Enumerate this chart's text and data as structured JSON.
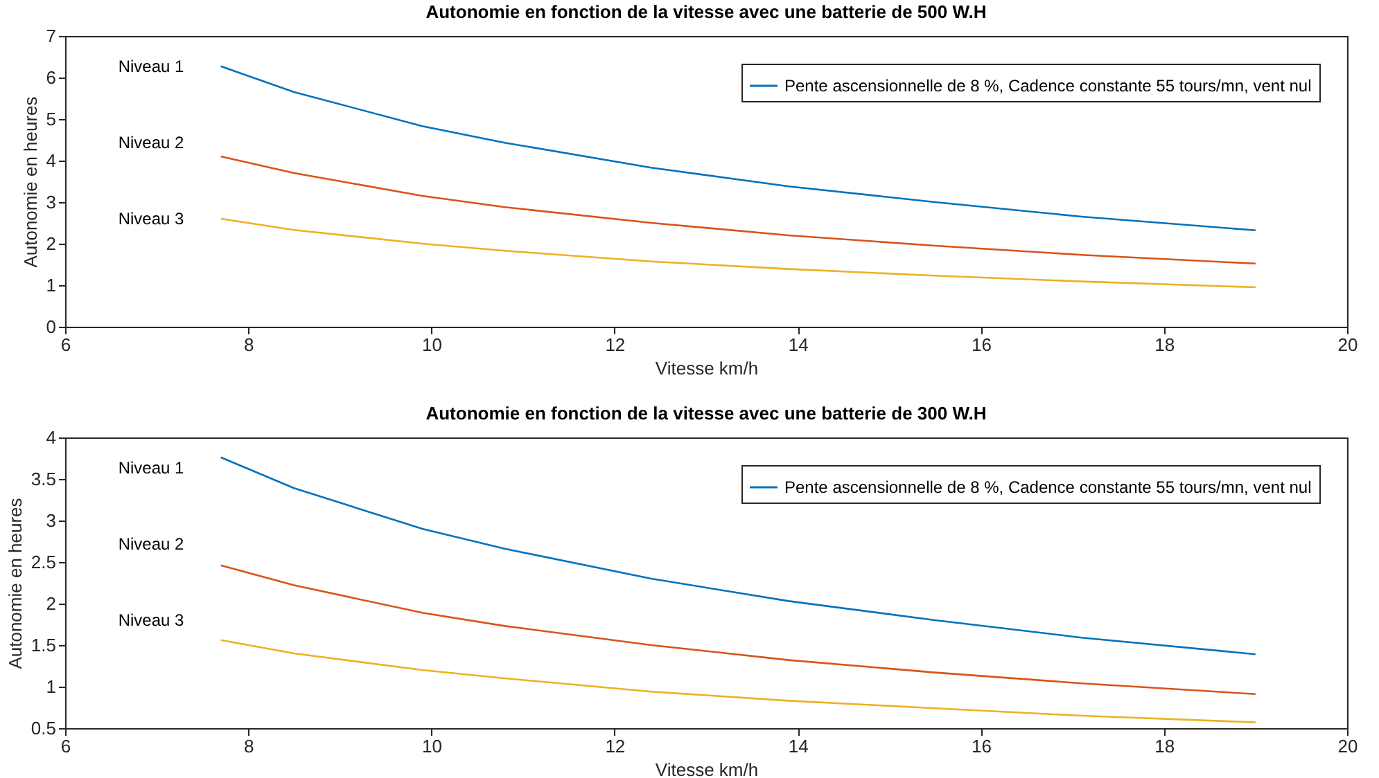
{
  "chart_data": [
    {
      "type": "line",
      "title": "Autonomie en fonction de la vitesse avec une batterie de 500 W.H",
      "xlabel": "Vitesse km/h",
      "ylabel": "Autonomie en heures",
      "x": [
        7.7,
        8.5,
        9.9,
        10.8,
        12.4,
        13.9,
        15.5,
        17.1,
        19.0
      ],
      "series": [
        {
          "name": "Pente ascensionnelle de 8 %, Cadence constante 55 tours/mn, vent nul",
          "color": "#0072bd",
          "values": [
            6.27,
            5.65,
            4.83,
            4.43,
            3.83,
            3.38,
            3.0,
            2.65,
            2.32
          ]
        },
        {
          "color": "#d95319",
          "values": [
            4.1,
            3.7,
            3.15,
            2.88,
            2.5,
            2.2,
            1.95,
            1.73,
            1.52
          ]
        },
        {
          "color": "#edb120",
          "values": [
            2.6,
            2.33,
            2.0,
            1.83,
            1.57,
            1.39,
            1.23,
            1.09,
            0.95
          ]
        }
      ],
      "xlim": [
        6,
        20
      ],
      "xticks": [
        6,
        8,
        10,
        12,
        14,
        16,
        18,
        20
      ],
      "ylim": [
        0,
        7
      ],
      "yticks": [
        0,
        1,
        2,
        3,
        4,
        5,
        6,
        7
      ],
      "legend": "top right",
      "annotations": [
        "Niveau 1",
        "Niveau 2",
        "Niveau 3"
      ]
    },
    {
      "type": "line",
      "title": "Autonomie en fonction de la vitesse avec une batterie de 300 W.H",
      "xlabel": "Vitesse km/h",
      "ylabel": "Autonomie en heures",
      "x": [
        7.7,
        8.5,
        9.9,
        10.8,
        12.4,
        13.9,
        15.5,
        17.1,
        19.0
      ],
      "series": [
        {
          "name": "Pente ascensionnelle de 8 %, Cadence constante 55 tours/mn, vent nul",
          "color": "#0072bd",
          "values": [
            3.76,
            3.39,
            2.9,
            2.66,
            2.3,
            2.03,
            1.8,
            1.59,
            1.39
          ]
        },
        {
          "color": "#d95319",
          "values": [
            2.46,
            2.22,
            1.89,
            1.73,
            1.5,
            1.32,
            1.17,
            1.04,
            0.91
          ]
        },
        {
          "color": "#edb120",
          "values": [
            1.56,
            1.4,
            1.2,
            1.1,
            0.94,
            0.83,
            0.74,
            0.65,
            0.57
          ]
        }
      ],
      "xlim": [
        6,
        20
      ],
      "xticks": [
        6,
        8,
        10,
        12,
        14,
        16,
        18,
        20
      ],
      "ylim": [
        0.5,
        4
      ],
      "yticks": [
        0.5,
        1,
        1.5,
        2,
        2.5,
        3,
        3.5,
        4
      ],
      "legend": "top right",
      "annotations": [
        "Niveau 1",
        "Niveau 2",
        "Niveau 3"
      ]
    }
  ]
}
